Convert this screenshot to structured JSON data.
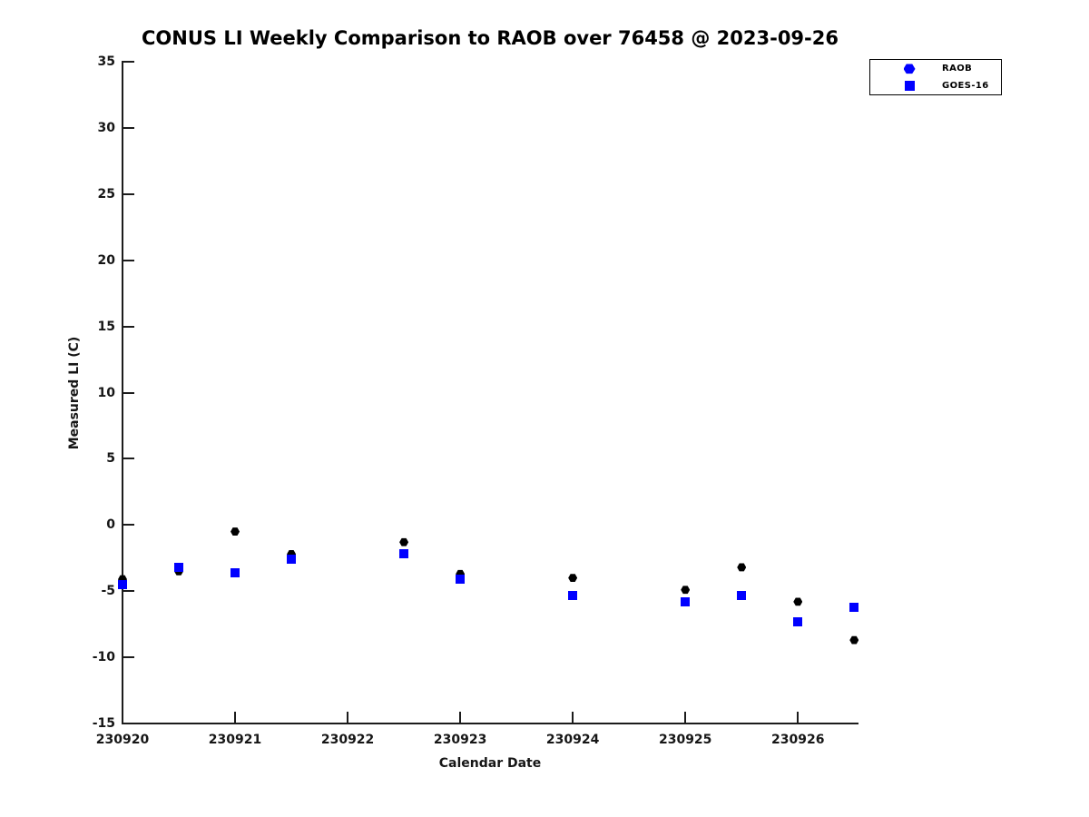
{
  "title": "CONUS LI Weekly Comparison to RAOB over 76458 @ 2023-09-26",
  "colors": {
    "marker_blue": "#0000ff",
    "marker_black": "#000000",
    "axis": "#1c1c1c"
  },
  "legend": {
    "position": "upper right",
    "entries": [
      {
        "label": "RAOB",
        "marker": "hexagon",
        "color": "#0000ff"
      },
      {
        "label": "GOES-16",
        "marker": "square",
        "color": "#0000ff"
      }
    ]
  },
  "chart_data": {
    "type": "scatter",
    "title": "CONUS LI Weekly Comparison to RAOB over 76458 @ 2023-09-26",
    "xlabel": "Calendar Date",
    "ylabel": "Measured LI (C)",
    "xlim": [
      230920,
      230926.53
    ],
    "ylim": [
      -15,
      35
    ],
    "xticks": [
      230920,
      230921,
      230922,
      230923,
      230924,
      230925,
      230926
    ],
    "yticks": [
      -15,
      -10,
      -5,
      0,
      5,
      10,
      15,
      20,
      25,
      30,
      35
    ],
    "grid": false,
    "legend_position": "upper right",
    "x": [
      230920,
      230920.5,
      230921,
      230921.5,
      230922.5,
      230923,
      230924,
      230925,
      230925.5,
      230926,
      230926.5
    ],
    "series": [
      {
        "name": "RAOB",
        "marker": "hexagon",
        "color": "#000000",
        "values": [
          -4.1,
          -3.5,
          -0.5,
          -2.2,
          -1.3,
          -3.7,
          -4.0,
          -4.9,
          -3.2,
          -5.8,
          -8.7
        ]
      },
      {
        "name": "GOES-16",
        "marker": "square",
        "color": "#0000ff",
        "values": [
          -4.5,
          -3.2,
          -3.6,
          -2.6,
          -2.2,
          -4.1,
          -5.3,
          -5.8,
          -5.3,
          -7.3,
          -6.2
        ]
      }
    ]
  }
}
